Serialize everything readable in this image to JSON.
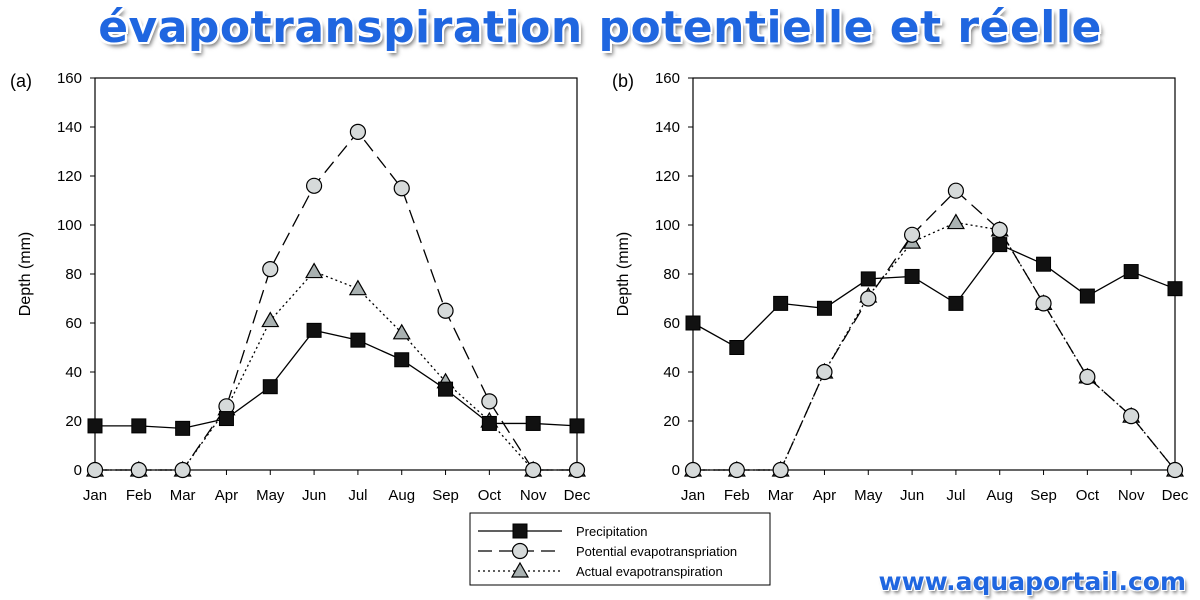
{
  "header": {
    "title": "évapotranspiration potentielle et réelle"
  },
  "watermark": "www.aquaportail.com",
  "colors": {
    "banner": "#1f66e0",
    "precip_marker": "#111111",
    "pet_marker": "#d6dada",
    "aet_marker": "#a9b1b1"
  },
  "legend": {
    "items": [
      {
        "label": "Precipitation",
        "line": "solid",
        "marker": "square"
      },
      {
        "label": "Potential evapotranspriation",
        "line": "dashed",
        "marker": "circle"
      },
      {
        "label": "Actual evapotranspiration",
        "line": "dotted",
        "marker": "triangle"
      }
    ]
  },
  "chart_data": [
    {
      "type": "line",
      "panel_label": "(a)",
      "ylabel": "Depth (mm)",
      "xlabel": "",
      "ylim": [
        0,
        160
      ],
      "yticks": [
        0,
        20,
        40,
        60,
        80,
        100,
        120,
        140,
        160
      ],
      "categories": [
        "Jan",
        "Feb",
        "Mar",
        "Apr",
        "May",
        "Jun",
        "Jul",
        "Aug",
        "Sep",
        "Oct",
        "Nov",
        "Dec"
      ],
      "series": [
        {
          "name": "Precipitation",
          "values": [
            18,
            18,
            17,
            21,
            34,
            57,
            53,
            45,
            33,
            19,
            19,
            18
          ]
        },
        {
          "name": "Potential evapotranspriation",
          "values": [
            0,
            0,
            0,
            26,
            82,
            116,
            138,
            115,
            65,
            28,
            0,
            0
          ]
        },
        {
          "name": "Actual evapotranspiration",
          "values": [
            0,
            0,
            0,
            25,
            61,
            81,
            74,
            56,
            36,
            20,
            0,
            0
          ]
        }
      ]
    },
    {
      "type": "line",
      "panel_label": "(b)",
      "ylabel": "Depth (mm)",
      "xlabel": "",
      "ylim": [
        0,
        160
      ],
      "yticks": [
        0,
        20,
        40,
        60,
        80,
        100,
        120,
        140,
        160
      ],
      "categories": [
        "Jan",
        "Feb",
        "Mar",
        "Apr",
        "May",
        "Jun",
        "Jul",
        "Aug",
        "Sep",
        "Oct",
        "Nov",
        "Dec"
      ],
      "series": [
        {
          "name": "Precipitation",
          "values": [
            60,
            50,
            68,
            66,
            78,
            79,
            68,
            92,
            84,
            71,
            81,
            74
          ]
        },
        {
          "name": "Potential evapotranspriation",
          "values": [
            0,
            0,
            0,
            40,
            70,
            96,
            114,
            98,
            68,
            38,
            22,
            0
          ]
        },
        {
          "name": "Actual evapotranspiration",
          "values": [
            0,
            0,
            0,
            40,
            71,
            93,
            101,
            98,
            68,
            38,
            22,
            0
          ]
        }
      ]
    }
  ]
}
